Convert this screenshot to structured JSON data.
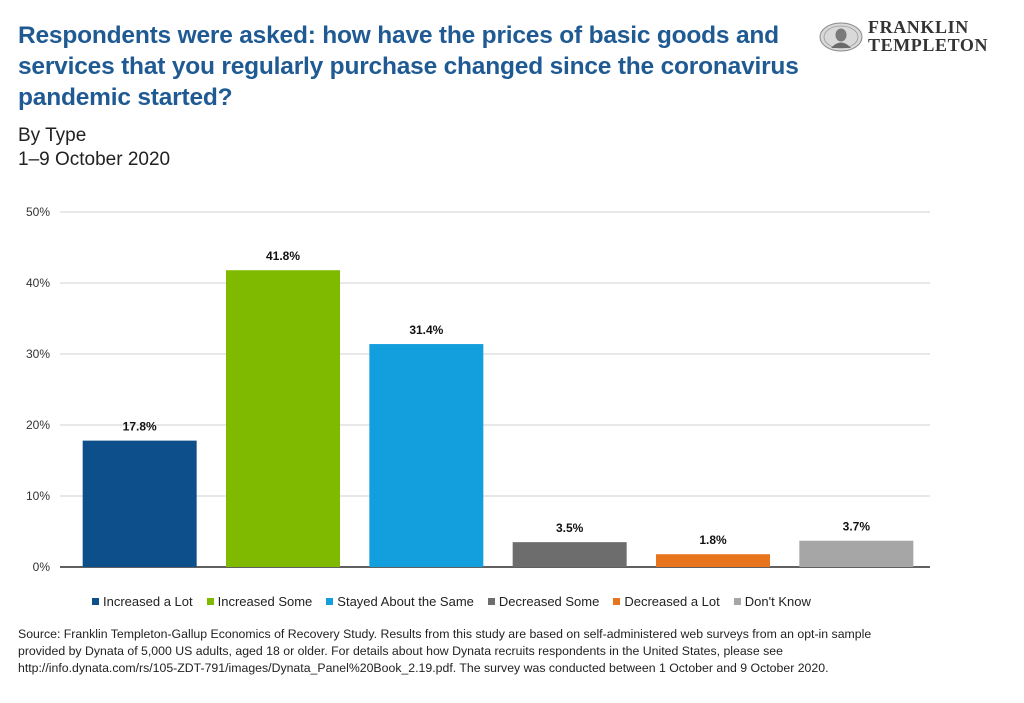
{
  "header": {
    "title": "Respondents were asked: how have the prices of basic goods and services that you regularly purchase changed since the coronavirus pandemic started?",
    "subtitle_line1": "By Type",
    "subtitle_line2": "1–9 October 2020"
  },
  "logo": {
    "line1": "FRANKLIN",
    "line2": "TEMPLETON",
    "seal_icon": "franklin-portrait-seal-icon"
  },
  "chart_data": {
    "type": "bar",
    "title": "Respondents were asked: how have the prices of basic goods and services that you regularly purchase changed since the coronavirus pandemic started?",
    "categories": [
      "Increased a Lot",
      "Increased Some",
      "Stayed About the Same",
      "Decreased Some",
      "Decreased a Lot",
      "Don't Know"
    ],
    "values": [
      17.8,
      41.8,
      31.4,
      3.5,
      1.8,
      3.7
    ],
    "value_labels": [
      "17.8%",
      "41.8%",
      "31.4%",
      "3.5%",
      "1.8%",
      "3.7%"
    ],
    "colors": [
      "#0d4f8b",
      "#7fba00",
      "#139fde",
      "#6d6d6d",
      "#e8741e",
      "#a6a6a6"
    ],
    "ylim": [
      0,
      50
    ],
    "yticks": [
      0,
      10,
      20,
      30,
      40,
      50
    ],
    "ytick_labels": [
      "0%",
      "10%",
      "20%",
      "30%",
      "40%",
      "50%"
    ],
    "grid": true,
    "legend": "bottom"
  },
  "footer": {
    "source_line1": "Source: Franklin Templeton-Gallup Economics of Recovery Study. Results from this study are based on self-administered web surveys from an opt-in sample",
    "source_line2": "provided by Dynata of 5,000 US adults, aged 18 or older. For details about how Dynata recruits respondents in the United States, please see",
    "source_line3": "http://info.dynata.com/rs/105-ZDT-791/images/Dynata_Panel%20Book_2.19.pdf. The survey was conducted between 1 October and 9 October 2020."
  }
}
